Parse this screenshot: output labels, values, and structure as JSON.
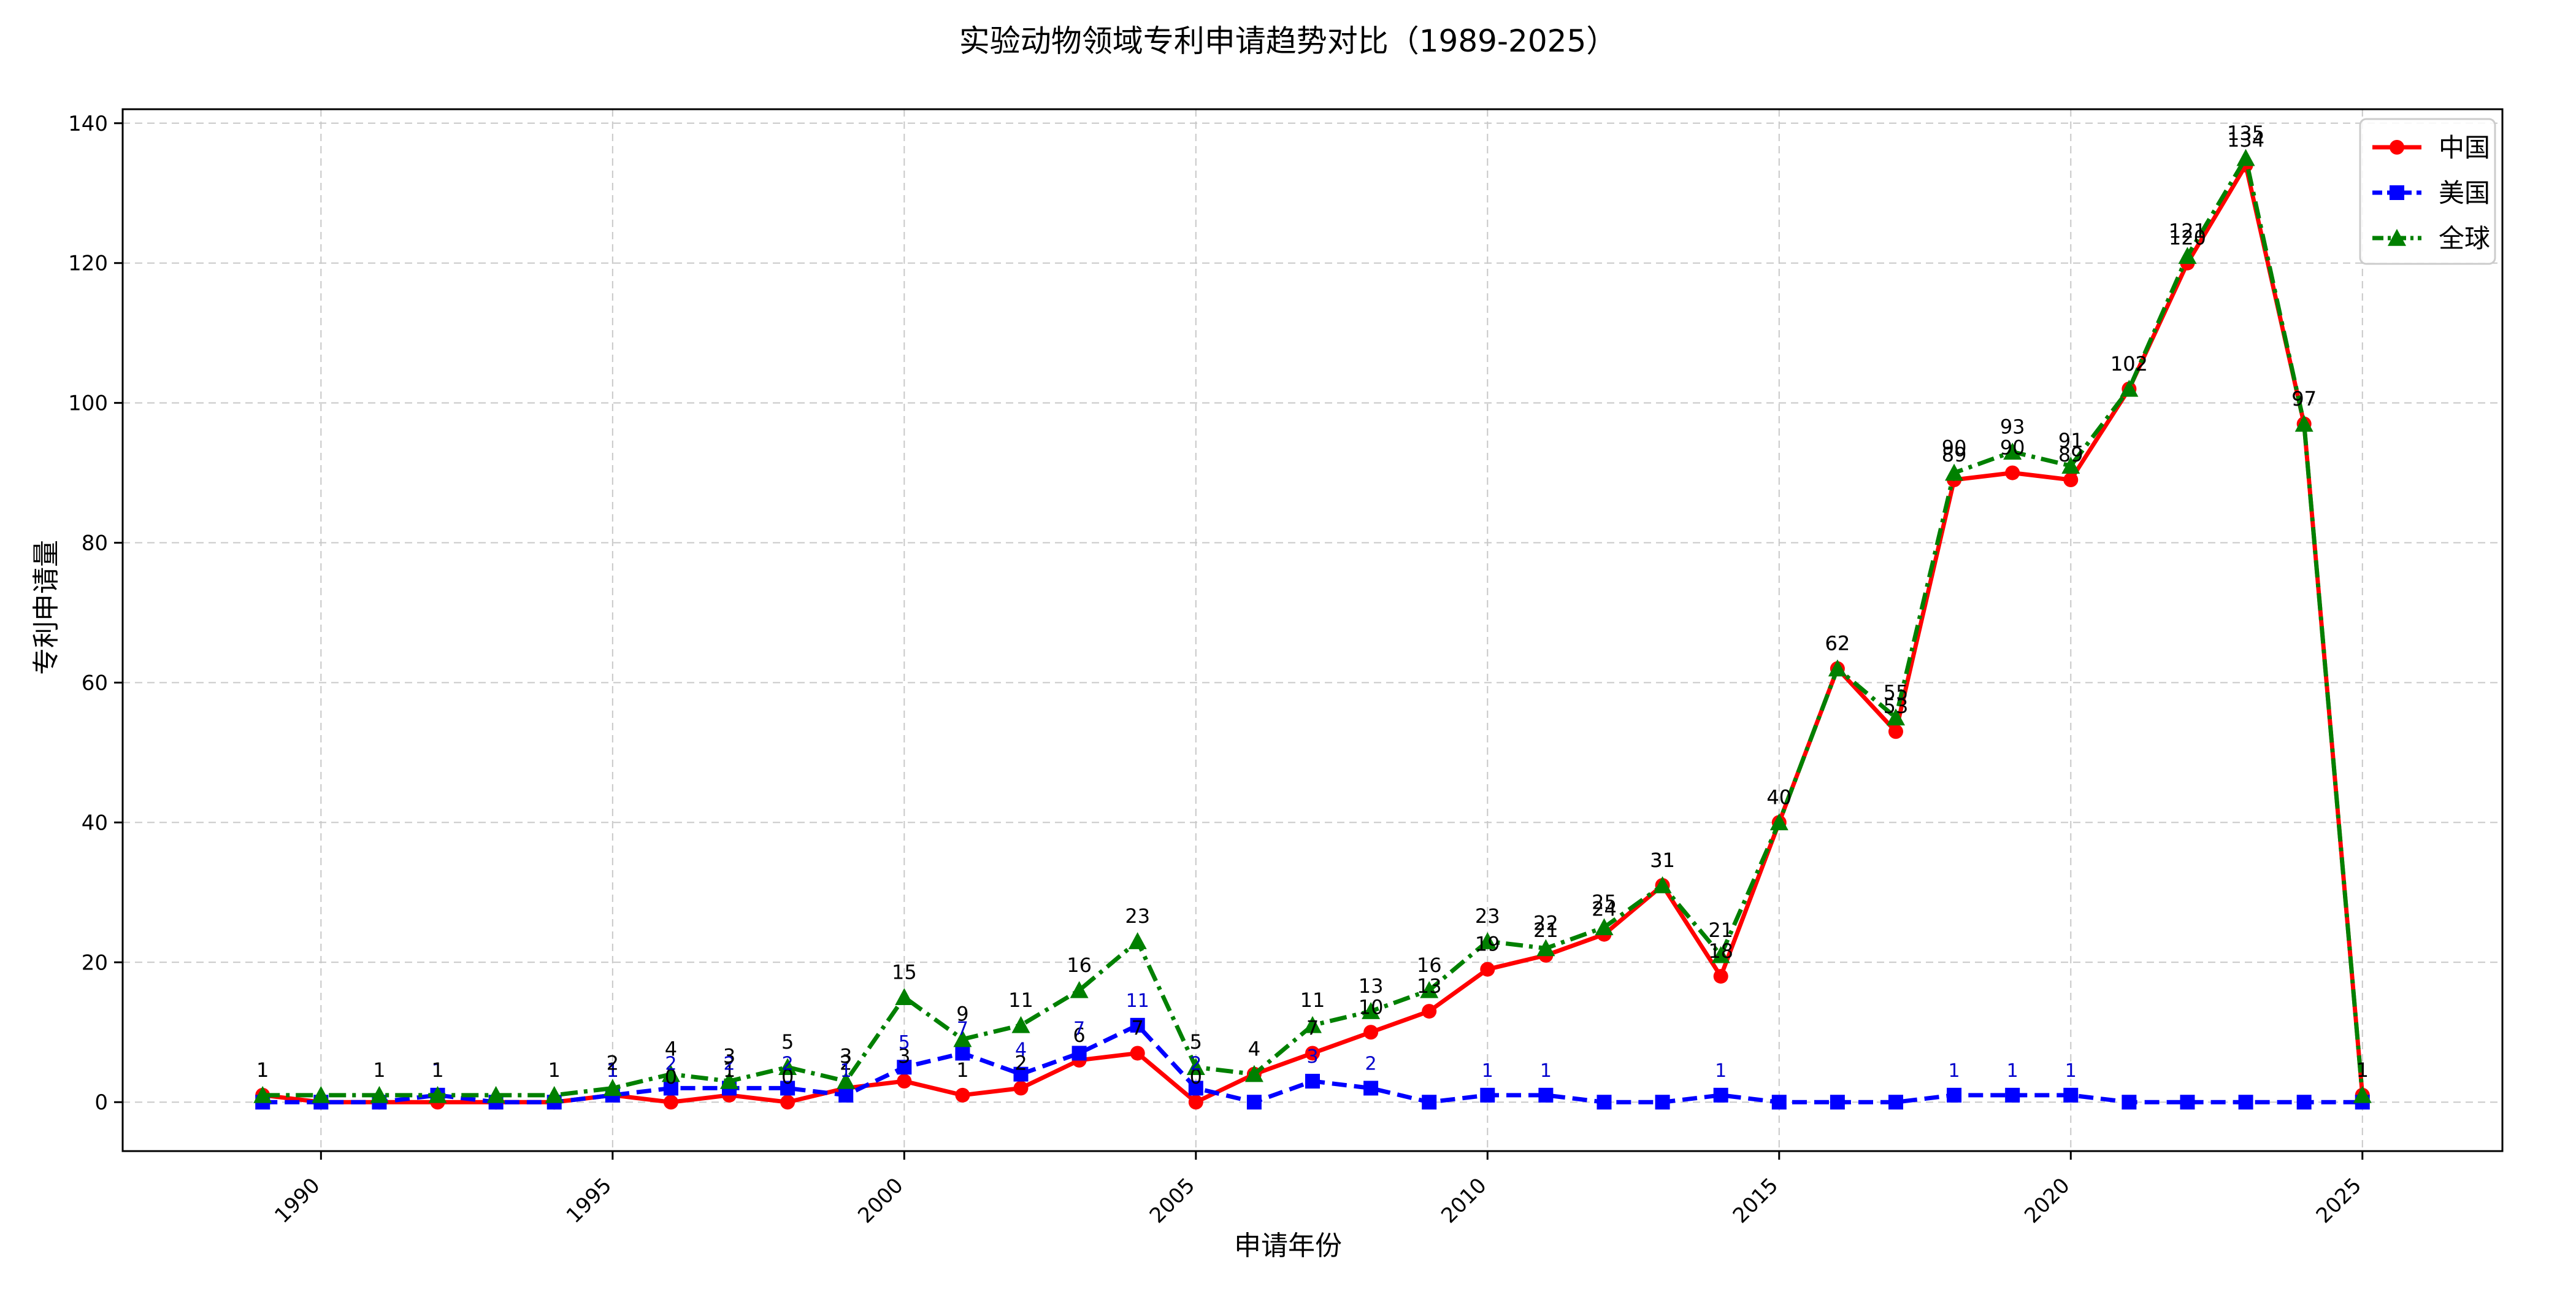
{
  "chart_data": {
    "type": "line",
    "title": "实验动物领域专利申请趋势对比（1989-2025）",
    "xlabel": "申请年份",
    "ylabel": "专利申请量",
    "xlim": [
      1986.6,
      2027.4
    ],
    "ylim": [
      -7,
      142
    ],
    "x_ticks": [
      1990,
      1995,
      2000,
      2005,
      2010,
      2015,
      2020,
      2025
    ],
    "y_ticks": [
      0,
      20,
      40,
      60,
      80,
      100,
      120,
      140
    ],
    "grid": true,
    "legend_position": "top-right",
    "x": [
      1989,
      1990,
      1991,
      1992,
      1993,
      1994,
      1995,
      1996,
      1997,
      1998,
      1999,
      2000,
      2001,
      2002,
      2003,
      2004,
      2005,
      2006,
      2007,
      2008,
      2009,
      2010,
      2011,
      2012,
      2013,
      2014,
      2015,
      2016,
      2017,
      2018,
      2019,
      2020,
      2021,
      2022,
      2023,
      2024,
      2025
    ],
    "series": [
      {
        "name": "中国",
        "color": "#ff0000",
        "marker": "circle",
        "line_style": "solid",
        "values": [
          1,
          0,
          0,
          0,
          0,
          0,
          1,
          0,
          1,
          0,
          2,
          3,
          1,
          2,
          6,
          7,
          0,
          4,
          7,
          10,
          13,
          19,
          21,
          24,
          31,
          18,
          40,
          62,
          53,
          89,
          90,
          89,
          102,
          120,
          134,
          97,
          1
        ],
        "labeled": [
          true,
          false,
          false,
          false,
          false,
          false,
          true,
          true,
          true,
          true,
          true,
          true,
          true,
          true,
          true,
          true,
          true,
          true,
          true,
          true,
          true,
          true,
          true,
          true,
          true,
          true,
          true,
          true,
          true,
          true,
          true,
          true,
          true,
          true,
          true,
          true,
          true
        ]
      },
      {
        "name": "美国",
        "color": "#0000ff",
        "marker": "square",
        "line_style": "dashed",
        "values": [
          0,
          0,
          0,
          1,
          0,
          0,
          1,
          2,
          2,
          2,
          1,
          5,
          7,
          4,
          7,
          11,
          2,
          0,
          3,
          2,
          0,
          1,
          1,
          0,
          0,
          1,
          0,
          0,
          0,
          1,
          1,
          1,
          0,
          0,
          0,
          0,
          0
        ],
        "labeled": [
          false,
          false,
          false,
          true,
          false,
          false,
          true,
          true,
          true,
          true,
          true,
          true,
          true,
          true,
          true,
          true,
          true,
          false,
          true,
          true,
          false,
          true,
          true,
          false,
          false,
          true,
          false,
          false,
          false,
          true,
          true,
          true,
          false,
          false,
          false,
          false,
          false
        ]
      },
      {
        "name": "全球",
        "color": "#008000",
        "marker": "triangle",
        "line_style": "dashdot",
        "values": [
          1,
          1,
          1,
          1,
          1,
          1,
          2,
          4,
          3,
          5,
          3,
          15,
          9,
          11,
          16,
          23,
          5,
          4,
          11,
          13,
          16,
          23,
          22,
          25,
          31,
          21,
          40,
          62,
          55,
          90,
          93,
          91,
          102,
          121,
          135,
          97,
          1
        ],
        "labeled": [
          true,
          false,
          true,
          true,
          false,
          true,
          true,
          true,
          true,
          true,
          true,
          true,
          true,
          true,
          true,
          true,
          true,
          true,
          true,
          true,
          true,
          true,
          true,
          true,
          true,
          true,
          true,
          true,
          true,
          true,
          true,
          true,
          true,
          true,
          true,
          true,
          true
        ]
      }
    ]
  }
}
